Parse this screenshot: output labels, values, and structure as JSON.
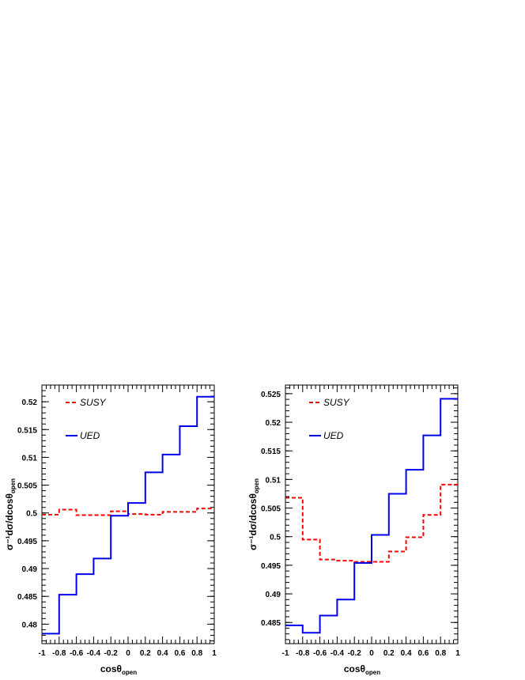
{
  "colors": {
    "SUSY": "#ff0000",
    "UED": "#0000ee",
    "axis": "#000000"
  },
  "chart_data": [
    {
      "type": "line",
      "step": true,
      "xlabel": "cosθ",
      "xlabel_sub": "open",
      "ylabel": "σ⁻¹dσ/dcosθ",
      "ylabel_sub": "open",
      "xlim": [
        -1,
        1
      ],
      "ylim": [
        0.4765,
        0.523
      ],
      "x_ticks": [
        "-1",
        "-0.8",
        "-0.6",
        "-0.4",
        "-0.2",
        "0",
        "0.2",
        "0.4",
        "0.6",
        "0.8",
        "1"
      ],
      "y_ticks": [
        "0.48",
        "0.485",
        "0.49",
        "0.495",
        "0.5",
        "0.505",
        "0.51",
        "0.515",
        "0.52"
      ],
      "bin_edges": [
        -1,
        -0.8,
        -0.6,
        -0.4,
        -0.2,
        0,
        0.2,
        0.4,
        0.6,
        0.8,
        1
      ],
      "legend": "top-left",
      "series": [
        {
          "name": "SUSY",
          "style": "dashed",
          "values": [
            0.4997,
            0.5006,
            0.4996,
            0.4996,
            0.5003,
            0.4998,
            0.4997,
            0.5002,
            0.5002,
            0.5008
          ]
        },
        {
          "name": "UED",
          "style": "solid",
          "values": [
            0.4783,
            0.4853,
            0.489,
            0.4918,
            0.4995,
            0.5018,
            0.5073,
            0.5105,
            0.5156,
            0.5209
          ]
        }
      ]
    },
    {
      "type": "line",
      "step": true,
      "xlabel": "cosθ",
      "xlabel_sub": "open",
      "ylabel": "σ⁻¹dσ/dcosθ",
      "ylabel_sub": "open",
      "xlim": [
        -1,
        1
      ],
      "ylim": [
        0.4813,
        0.5265
      ],
      "x_ticks": [
        "-1",
        "-0.8",
        "-0.6",
        "-0.4",
        "-0.2",
        "0",
        "0.2",
        "0.4",
        "0.6",
        "0.8",
        "1"
      ],
      "y_ticks": [
        "0.485",
        "0.49",
        "0.495",
        "0.5",
        "0.505",
        "0.51",
        "0.515",
        "0.52",
        "0.525"
      ],
      "bin_edges": [
        -1,
        -0.8,
        -0.6,
        -0.4,
        -0.2,
        0,
        0.2,
        0.4,
        0.6,
        0.8,
        1
      ],
      "legend": "top-left",
      "series": [
        {
          "name": "SUSY",
          "style": "dashed",
          "values": [
            0.5068,
            0.4995,
            0.496,
            0.4958,
            0.4956,
            0.4956,
            0.4974,
            0.4999,
            0.5038,
            0.5091
          ]
        },
        {
          "name": "UED",
          "style": "solid",
          "values": [
            0.4845,
            0.4832,
            0.4862,
            0.489,
            0.4954,
            0.5003,
            0.5075,
            0.5117,
            0.5177,
            0.5241
          ]
        }
      ]
    }
  ]
}
